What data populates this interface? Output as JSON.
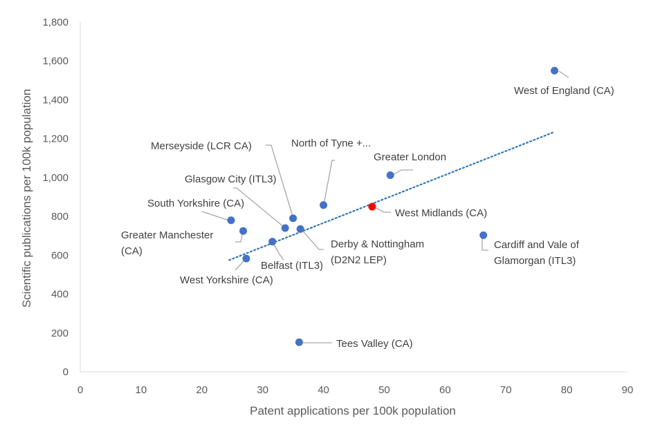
{
  "chart_data": {
    "type": "scatter",
    "title": "",
    "xlabel": "Patent applications per 100k population",
    "ylabel": "Scientific publications per 100k population",
    "xlim": [
      0,
      90
    ],
    "ylim": [
      0,
      1800
    ],
    "x_ticks": [
      "0",
      "10",
      "20",
      "30",
      "40",
      "50",
      "60",
      "70",
      "80",
      "90"
    ],
    "y_ticks": [
      "0",
      "200",
      "400",
      "600",
      "800",
      "1,000",
      "1,200",
      "1,400",
      "1,600",
      "1,800"
    ],
    "grid": false,
    "trendline": {
      "style": "dotted",
      "x_range": [
        24.5,
        78
      ],
      "y_range": [
        575,
        1235
      ]
    },
    "colors": {
      "points": "#4472C4",
      "highlight": "#FF0000",
      "trendline": "#2E75B6",
      "leader": "#A6A6A6",
      "axis": "#D9D9D9"
    },
    "points": [
      {
        "label": [
          "West of England (CA)"
        ],
        "x": 78,
        "y": 1550
      },
      {
        "label": [
          "Greater London"
        ],
        "x": 51,
        "y": 1012
      },
      {
        "label": [
          "North of Tyne +..."
        ],
        "x": 40,
        "y": 858
      },
      {
        "label": [
          "Merseyside (LCR CA)"
        ],
        "x": 35,
        "y": 790
      },
      {
        "label": [
          "West Midlands (CA)"
        ],
        "x": 48,
        "y": 850,
        "highlight": true
      },
      {
        "label": [
          "Glasgow City (ITL3)"
        ],
        "x": 33.7,
        "y": 740
      },
      {
        "label": [
          "South Yorkshire (CA)"
        ],
        "x": 24.8,
        "y": 780
      },
      {
        "label": [
          "Greater Manchester",
          "(CA)"
        ],
        "x": 26.8,
        "y": 725
      },
      {
        "label": [
          "Derby & Nottingham",
          "(D2N2 LEP)"
        ],
        "x": 36.2,
        "y": 735
      },
      {
        "label": [
          "Belfast (ITL3)"
        ],
        "x": 31.6,
        "y": 670
      },
      {
        "label": [
          "West Yorkshire (CA)"
        ],
        "x": 27.3,
        "y": 583
      },
      {
        "label": [
          "Cardiff and Vale of",
          "Glamorgan (ITL3)"
        ],
        "x": 66.3,
        "y": 703
      },
      {
        "label": [
          "Tees Valley (CA)"
        ],
        "x": 36,
        "y": 152
      }
    ]
  }
}
